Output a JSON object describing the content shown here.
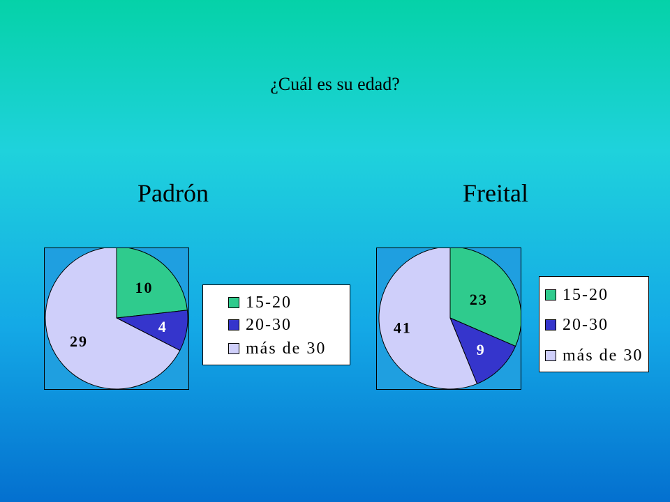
{
  "page": {
    "title": "¿Cuál es su edad?"
  },
  "colors": {
    "15-20": "#2fcb8d",
    "20-30": "#3535cc",
    "mas_de_30": "#cfcffa"
  },
  "chart_data": [
    {
      "type": "pie",
      "title": "Padrón",
      "slices": [
        {
          "label": "15-20",
          "value": 10
        },
        {
          "label": "20-30",
          "value": 4
        },
        {
          "label": "más de 30",
          "value": 29
        }
      ],
      "legend": [
        "15-20",
        "20-30",
        "más de 30"
      ],
      "legend_position": "right"
    },
    {
      "type": "pie",
      "title": "Freital",
      "slices": [
        {
          "label": "15-20",
          "value": 23
        },
        {
          "label": "20-30",
          "value": 9
        },
        {
          "label": "más de 30",
          "value": 41
        }
      ],
      "legend": [
        "15-20",
        "20-30",
        "más de 30"
      ],
      "legend_position": "right"
    }
  ]
}
